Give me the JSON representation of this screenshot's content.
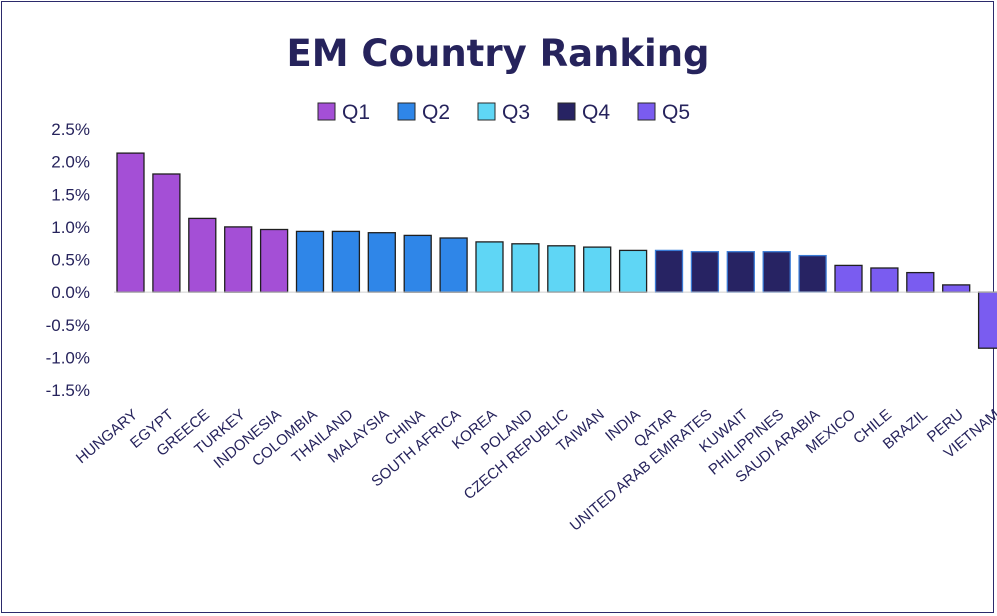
{
  "chart_data": {
    "type": "bar",
    "title": "EM Country Ranking",
    "categories": [
      "HUNGARY",
      "EGYPT",
      "GREECE",
      "TURKEY",
      "INDONESIA",
      "COLOMBIA",
      "THAILAND",
      "MALAYSIA",
      "CHINA",
      "SOUTH AFRICA",
      "KOREA",
      "POLAND",
      "CZECH REPUBLIC",
      "TAIWAN",
      "INDIA",
      "QATAR",
      "UNITED ARAB EMIRATES",
      "KUWAIT",
      "PHILIPPINES",
      "SAUDI ARABIA",
      "MEXICO",
      "CHILE",
      "BRAZIL",
      "PERU",
      "VIETNAM"
    ],
    "values": [
      2.13,
      1.81,
      1.13,
      1.0,
      0.96,
      0.93,
      0.93,
      0.91,
      0.87,
      0.83,
      0.77,
      0.74,
      0.71,
      0.69,
      0.64,
      0.64,
      0.62,
      0.62,
      0.62,
      0.56,
      0.41,
      0.37,
      0.3,
      0.11,
      -0.86
    ],
    "groups": [
      "Q1",
      "Q1",
      "Q1",
      "Q1",
      "Q1",
      "Q2",
      "Q2",
      "Q2",
      "Q2",
      "Q2",
      "Q3",
      "Q3",
      "Q3",
      "Q3",
      "Q3",
      "Q4",
      "Q4",
      "Q4",
      "Q4",
      "Q4",
      "Q5",
      "Q5",
      "Q5",
      "Q5",
      "Q5"
    ],
    "series": [
      {
        "name": "Q1",
        "color": "#a44fd6"
      },
      {
        "name": "Q2",
        "color": "#2f86e8"
      },
      {
        "name": "Q3",
        "color": "#5fd6f5"
      },
      {
        "name": "Q4",
        "color": "#272363"
      },
      {
        "name": "Q5",
        "color": "#7a5cf0"
      }
    ],
    "ylim": [
      -1.5,
      2.5
    ],
    "yticks": [
      2.5,
      2.0,
      1.5,
      1.0,
      0.5,
      0.0,
      -0.5,
      -1.0,
      -1.5
    ],
    "ytick_labels": [
      "2.5%",
      "2.0%",
      "1.5%",
      "1.0%",
      "0.5%",
      "0.0%",
      "-0.5%",
      "-1.0%",
      "-1.5%"
    ],
    "grid": false,
    "legend_position": "top-center"
  }
}
